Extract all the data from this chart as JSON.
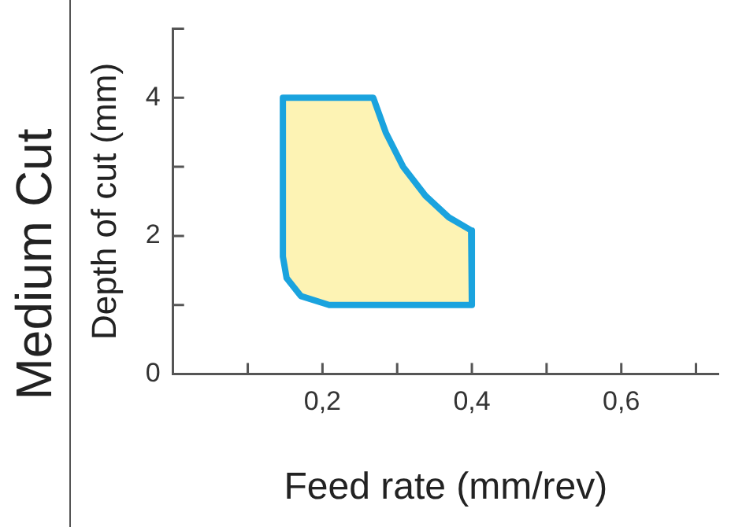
{
  "chart_data": {
    "type": "area",
    "title": "Medium Cut",
    "xlabel": "Feed rate (mm/rev)",
    "ylabel": "Depth of cut (mm)",
    "xlim": [
      0,
      0.73
    ],
    "ylim": [
      0,
      5
    ],
    "xticks": [
      {
        "value": 0.1,
        "label": null
      },
      {
        "value": 0.2,
        "label": "0,2"
      },
      {
        "value": 0.3,
        "label": null
      },
      {
        "value": 0.4,
        "label": "0,4"
      },
      {
        "value": 0.5,
        "label": null
      },
      {
        "value": 0.6,
        "label": "0,6"
      },
      {
        "value": 0.7,
        "label": null
      }
    ],
    "yticks": [
      0,
      {
        "value": 1,
        "label": null
      },
      2,
      {
        "value": 3,
        "label": null
      },
      4,
      {
        "value": 5,
        "label": null
      }
    ],
    "grid": false,
    "legend": false,
    "marker": "none",
    "line_style": "solid",
    "series": [
      {
        "color": "#fdf3b4",
        "x": [
          0.147,
          0.268,
          0.285,
          0.308,
          0.338,
          0.369,
          0.399,
          0.4,
          0.209,
          0.171,
          0.152,
          0.147,
          0.147
        ],
        "values": [
          4,
          4,
          3.49,
          3.0,
          2.58,
          2.27,
          2.08,
          1.0,
          1.0,
          1.13,
          1.39,
          1.7,
          4
        ]
      }
    ]
  }
}
